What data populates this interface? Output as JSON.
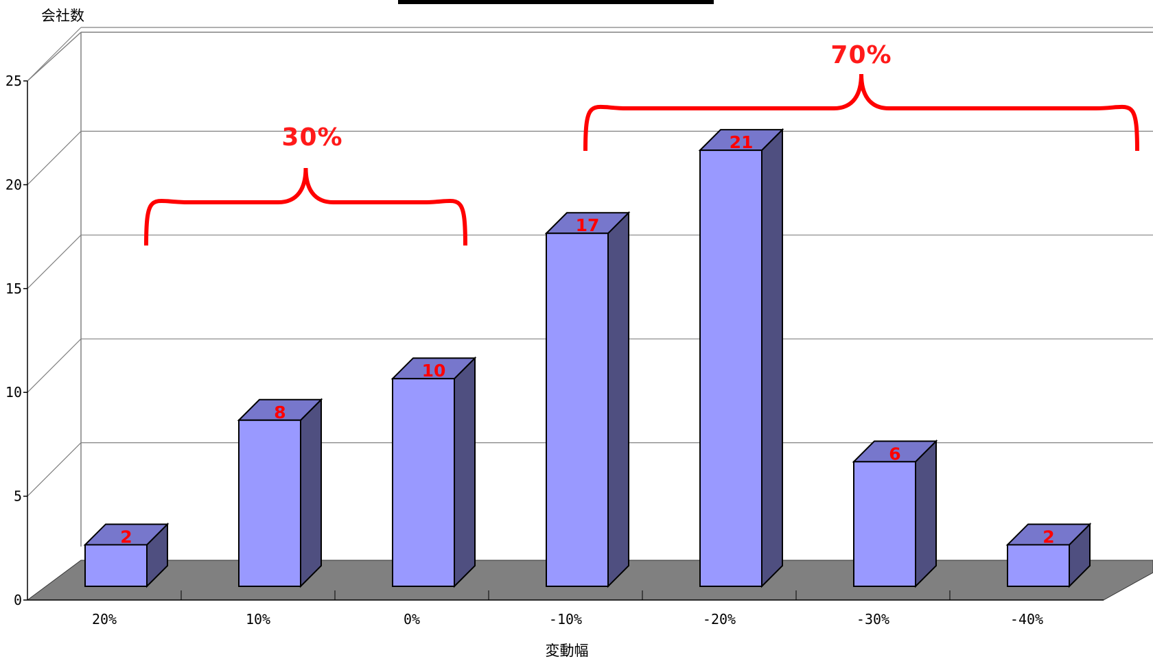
{
  "chart_data": {
    "type": "bar",
    "style": "3d-column",
    "categories": [
      "20%",
      "10%",
      "0%",
      "-10%",
      "-20%",
      "-30%",
      "-40%"
    ],
    "values": [
      2,
      8,
      10,
      17,
      21,
      6,
      2
    ],
    "title": "",
    "xlabel": "変動幅",
    "ylabel": "会社数",
    "ylim": [
      0,
      25
    ],
    "yticks": [
      0,
      5,
      10,
      15,
      20,
      25
    ],
    "grid": true,
    "legend": "none",
    "annotations": [
      {
        "label": "30%",
        "from_category": "20%",
        "to_category": "0%"
      },
      {
        "label": "70%",
        "from_category": "-10%",
        "to_category": "-40%"
      }
    ]
  },
  "colors": {
    "bar_front": "#9999ff",
    "bar_top": "#7777cc",
    "bar_side": "#4f4f80",
    "floor": "#808080",
    "data_label": "#ff0000",
    "bracket": "#ff0000",
    "title_bar": "#000000"
  }
}
